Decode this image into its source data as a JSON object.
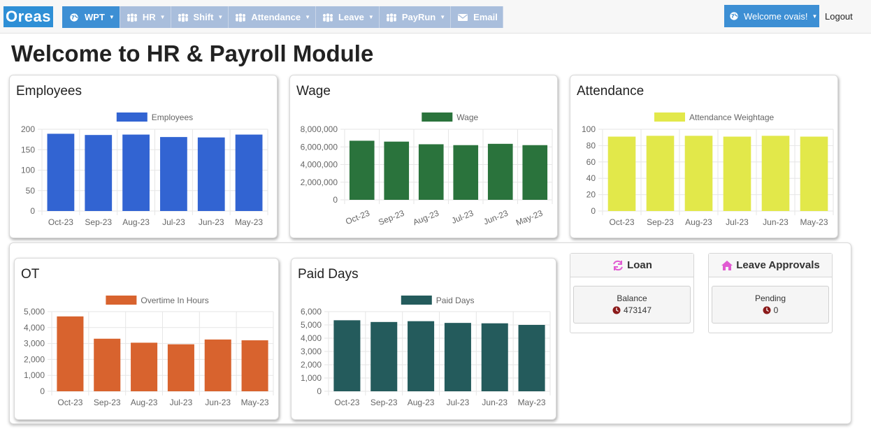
{
  "nav": {
    "logo": "Oreas",
    "menu": [
      {
        "label": "WPT",
        "icon": "globe-icon",
        "active": true
      },
      {
        "label": "HR",
        "icon": "users-icon",
        "active": false
      },
      {
        "label": "Shift",
        "icon": "users-icon",
        "active": false
      },
      {
        "label": "Attendance",
        "icon": "users-icon",
        "active": false
      },
      {
        "label": "Leave",
        "icon": "users-icon",
        "active": false
      },
      {
        "label": "PayRun",
        "icon": "users-icon",
        "active": false
      },
      {
        "label": "Email",
        "icon": "envelope-icon",
        "active": false
      }
    ],
    "welcome": "Welcome ovais!",
    "logout": "Logout"
  },
  "page_title": "Welcome to HR & Payroll Module",
  "colors": {
    "employees": "#3264d2",
    "wage": "#2a733c",
    "attendance": "#e2e84a",
    "ot": "#d8632e",
    "paid_days": "#245b5c",
    "nav_active": "#3d8fd4",
    "nav_item": "#a9bedc",
    "loan_icon": "#e15bd2",
    "leave_icon": "#e15bd2",
    "clock_icon": "#8b1a1a"
  },
  "cards": {
    "employees": {
      "title": "Employees"
    },
    "wage": {
      "title": "Wage"
    },
    "attendance": {
      "title": "Attendance"
    },
    "ot": {
      "title": "OT"
    },
    "paid_days": {
      "title": "Paid Days"
    }
  },
  "chart_data": [
    {
      "id": "employees",
      "type": "bar",
      "categories": [
        "Oct-23",
        "Sep-23",
        "Aug-23",
        "Jul-23",
        "Jun-23",
        "May-23"
      ],
      "series": [
        {
          "name": "Employees",
          "values": [
            189,
            186,
            187,
            181,
            180,
            187
          ]
        }
      ],
      "ylim": [
        0,
        200
      ],
      "yticks": [
        0,
        50,
        100,
        150,
        200
      ],
      "yticklabels": [
        "0",
        "50",
        "100",
        "150",
        "200"
      ],
      "legend": "top",
      "grid": true,
      "rotate_x": false
    },
    {
      "id": "wage",
      "type": "bar",
      "categories": [
        "Oct-23",
        "Sep-23",
        "Aug-23",
        "Jul-23",
        "Jun-23",
        "May-23"
      ],
      "series": [
        {
          "name": "Wage",
          "values": [
            6700000,
            6600000,
            6300000,
            6200000,
            6350000,
            6200000
          ]
        }
      ],
      "ylim": [
        0,
        8000000
      ],
      "yticks": [
        0,
        2000000,
        4000000,
        6000000,
        8000000
      ],
      "yticklabels": [
        "0",
        "2,000,000",
        "4,000,000",
        "6,000,000",
        "8,000,000"
      ],
      "legend": "top",
      "grid": true,
      "rotate_x": true
    },
    {
      "id": "attendance",
      "type": "bar",
      "categories": [
        "Oct-23",
        "Sep-23",
        "Aug-23",
        "Jul-23",
        "Jun-23",
        "May-23"
      ],
      "series": [
        {
          "name": "Attendance Weightage",
          "values": [
            91,
            92,
            92,
            91,
            92,
            91
          ]
        }
      ],
      "ylim": [
        0,
        100
      ],
      "yticks": [
        0,
        20,
        40,
        60,
        80,
        100
      ],
      "yticklabels": [
        "0",
        "20",
        "40",
        "60",
        "80",
        "100"
      ],
      "legend": "top",
      "grid": true,
      "rotate_x": false
    },
    {
      "id": "ot",
      "type": "bar",
      "categories": [
        "Oct-23",
        "Sep-23",
        "Aug-23",
        "Jul-23",
        "Jun-23",
        "May-23"
      ],
      "series": [
        {
          "name": "Overtime In Hours",
          "values": [
            4700,
            3300,
            3050,
            2950,
            3250,
            3200
          ]
        }
      ],
      "ylim": [
        0,
        5000
      ],
      "yticks": [
        0,
        1000,
        2000,
        3000,
        4000,
        5000
      ],
      "yticklabels": [
        "0",
        "1,000",
        "2,000",
        "3,000",
        "4,000",
        "5,000"
      ],
      "legend": "top",
      "grid": true,
      "rotate_x": false
    },
    {
      "id": "paid_days",
      "type": "bar",
      "categories": [
        "Oct-23",
        "Sep-23",
        "Aug-23",
        "Jul-23",
        "Jun-23",
        "May-23"
      ],
      "series": [
        {
          "name": "Paid Days",
          "values": [
            5350,
            5220,
            5280,
            5150,
            5120,
            5000
          ]
        }
      ],
      "ylim": [
        0,
        6000
      ],
      "yticks": [
        0,
        1000,
        2000,
        3000,
        4000,
        5000,
        6000
      ],
      "yticklabels": [
        "0",
        "1,000",
        "2,000",
        "3,000",
        "4,000",
        "5,000",
        "6,000"
      ],
      "legend": "top",
      "grid": true,
      "rotate_x": false
    }
  ],
  "loan": {
    "title": "Loan",
    "label": "Balance",
    "value": "473147"
  },
  "leave_approvals": {
    "title": "Leave Approvals",
    "label": "Pending",
    "value": "0"
  }
}
